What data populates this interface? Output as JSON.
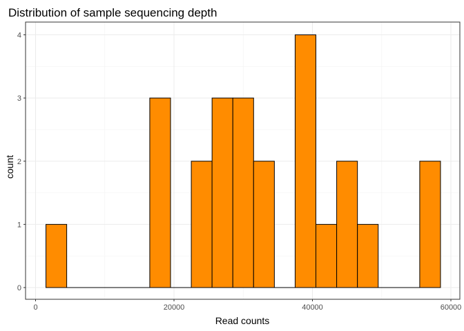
{
  "chart_data": {
    "type": "bar",
    "subtype": "histogram",
    "title": "Distribution of sample sequencing depth",
    "xlabel": "Read counts",
    "ylabel": "count",
    "xlim": [
      0,
      61000
    ],
    "ylim": [
      0,
      4.2
    ],
    "x_ticks": [
      0,
      20000,
      40000,
      60000
    ],
    "x_tick_labels": [
      "0",
      "20000",
      "40000",
      "60000"
    ],
    "y_ticks": [
      0,
      1,
      2,
      3,
      4
    ],
    "y_tick_labels": [
      "0",
      "1",
      "2",
      "3",
      "4"
    ],
    "bin_width": 3000,
    "bins": [
      {
        "x0": 1500,
        "x1": 4500,
        "count": 1
      },
      {
        "x0": 4500,
        "x1": 7500,
        "count": 0
      },
      {
        "x0": 7500,
        "x1": 10500,
        "count": 0
      },
      {
        "x0": 10500,
        "x1": 13500,
        "count": 0
      },
      {
        "x0": 13500,
        "x1": 16500,
        "count": 0
      },
      {
        "x0": 16500,
        "x1": 19500,
        "count": 3
      },
      {
        "x0": 19500,
        "x1": 22500,
        "count": 0
      },
      {
        "x0": 22500,
        "x1": 25500,
        "count": 2
      },
      {
        "x0": 25500,
        "x1": 28500,
        "count": 3
      },
      {
        "x0": 28500,
        "x1": 31500,
        "count": 3
      },
      {
        "x0": 31500,
        "x1": 34500,
        "count": 2
      },
      {
        "x0": 34500,
        "x1": 37500,
        "count": 0
      },
      {
        "x0": 37500,
        "x1": 40500,
        "count": 4
      },
      {
        "x0": 40500,
        "x1": 43500,
        "count": 1
      },
      {
        "x0": 43500,
        "x1": 46500,
        "count": 2
      },
      {
        "x0": 46500,
        "x1": 49500,
        "count": 1
      },
      {
        "x0": 49500,
        "x1": 52500,
        "count": 0
      },
      {
        "x0": 52500,
        "x1": 55500,
        "count": 0
      },
      {
        "x0": 55500,
        "x1": 58500,
        "count": 2
      }
    ],
    "fill_color": "#FF8C00",
    "stroke_color": "#000000",
    "grid": true
  }
}
